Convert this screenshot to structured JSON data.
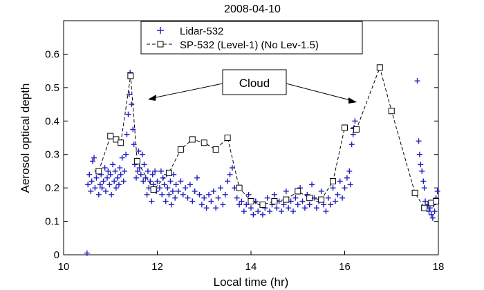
{
  "chart_data": {
    "type": "scatter",
    "title": "2008-04-10",
    "xlabel": "Local time (hr)",
    "ylabel": "Aerosol optical depth",
    "xlim": [
      10,
      18
    ],
    "ylim": [
      0,
      0.7
    ],
    "xticks": [
      10,
      12,
      14,
      16,
      18
    ],
    "yticks": [
      0,
      0.1,
      0.2,
      0.3,
      0.4,
      0.5,
      0.6
    ],
    "grid": false,
    "legend_position": "top-center",
    "annotation": "Cloud",
    "series": [
      {
        "name": "Lidar-532",
        "marker": "plus",
        "color": "#1f1fbf",
        "points": [
          [
            10.5,
            0.005
          ],
          [
            10.52,
            0.21
          ],
          [
            10.55,
            0.24
          ],
          [
            10.58,
            0.19
          ],
          [
            10.6,
            0.22
          ],
          [
            10.62,
            0.28
          ],
          [
            10.65,
            0.29
          ],
          [
            10.67,
            0.2
          ],
          [
            10.7,
            0.23
          ],
          [
            10.72,
            0.25
          ],
          [
            10.75,
            0.18
          ],
          [
            10.78,
            0.21
          ],
          [
            10.8,
            0.24
          ],
          [
            10.82,
            0.2
          ],
          [
            10.85,
            0.22
          ],
          [
            10.88,
            0.26
          ],
          [
            10.9,
            0.19
          ],
          [
            10.93,
            0.23
          ],
          [
            10.95,
            0.25
          ],
          [
            10.98,
            0.21
          ],
          [
            11.0,
            0.24
          ],
          [
            11.02,
            0.18
          ],
          [
            11.05,
            0.27
          ],
          [
            11.08,
            0.22
          ],
          [
            11.1,
            0.25
          ],
          [
            11.12,
            0.2
          ],
          [
            11.15,
            0.23
          ],
          [
            11.18,
            0.21
          ],
          [
            11.2,
            0.26
          ],
          [
            11.22,
            0.24
          ],
          [
            11.25,
            0.29
          ],
          [
            11.28,
            0.22
          ],
          [
            11.3,
            0.25
          ],
          [
            11.33,
            0.3
          ],
          [
            11.35,
            0.36
          ],
          [
            11.38,
            0.42
          ],
          [
            11.4,
            0.48
          ],
          [
            11.42,
            0.545
          ],
          [
            11.45,
            0.45
          ],
          [
            11.48,
            0.375
          ],
          [
            11.5,
            0.33
          ],
          [
            11.52,
            0.27
          ],
          [
            11.55,
            0.23
          ],
          [
            11.58,
            0.25
          ],
          [
            11.6,
            0.31
          ],
          [
            11.62,
            0.26
          ],
          [
            11.65,
            0.24
          ],
          [
            11.68,
            0.3
          ],
          [
            11.7,
            0.22
          ],
          [
            11.72,
            0.27
          ],
          [
            11.75,
            0.23
          ],
          [
            11.78,
            0.18
          ],
          [
            11.8,
            0.25
          ],
          [
            11.82,
            0.2
          ],
          [
            11.85,
            0.22
          ],
          [
            11.88,
            0.16
          ],
          [
            11.9,
            0.24
          ],
          [
            11.92,
            0.21
          ],
          [
            11.95,
            0.25
          ],
          [
            11.98,
            0.19
          ],
          [
            12.0,
            0.22
          ],
          [
            12.05,
            0.2
          ],
          [
            12.08,
            0.25
          ],
          [
            12.1,
            0.18
          ],
          [
            12.12,
            0.23
          ],
          [
            12.15,
            0.21
          ],
          [
            12.18,
            0.16
          ],
          [
            12.2,
            0.24
          ],
          [
            12.22,
            0.2
          ],
          [
            12.25,
            0.18
          ],
          [
            12.28,
            0.22
          ],
          [
            12.3,
            0.15
          ],
          [
            12.33,
            0.19
          ],
          [
            12.35,
            0.24
          ],
          [
            12.38,
            0.17
          ],
          [
            12.4,
            0.21
          ],
          [
            12.45,
            0.19
          ],
          [
            12.5,
            0.22
          ],
          [
            12.55,
            0.18
          ],
          [
            12.6,
            0.2
          ],
          [
            12.65,
            0.17
          ],
          [
            12.7,
            0.21
          ],
          [
            12.75,
            0.16
          ],
          [
            12.8,
            0.19
          ],
          [
            12.85,
            0.23
          ],
          [
            12.9,
            0.18
          ],
          [
            12.95,
            0.15
          ],
          [
            13.0,
            0.17
          ],
          [
            13.05,
            0.14
          ],
          [
            13.1,
            0.18
          ],
          [
            13.15,
            0.16
          ],
          [
            13.2,
            0.19
          ],
          [
            13.25,
            0.14
          ],
          [
            13.3,
            0.17
          ],
          [
            13.35,
            0.2
          ],
          [
            13.4,
            0.15
          ],
          [
            13.45,
            0.18
          ],
          [
            13.5,
            0.22
          ],
          [
            13.55,
            0.24
          ],
          [
            13.6,
            0.26
          ],
          [
            13.65,
            0.2
          ],
          [
            13.7,
            0.17
          ],
          [
            13.75,
            0.15
          ],
          [
            13.8,
            0.16
          ],
          [
            13.85,
            0.13
          ],
          [
            13.9,
            0.15
          ],
          [
            13.95,
            0.18
          ],
          [
            14.0,
            0.14
          ],
          [
            14.05,
            0.12
          ],
          [
            14.1,
            0.16
          ],
          [
            14.15,
            0.13
          ],
          [
            14.2,
            0.15
          ],
          [
            14.25,
            0.12
          ],
          [
            14.3,
            0.14
          ],
          [
            14.35,
            0.17
          ],
          [
            14.4,
            0.13
          ],
          [
            14.45,
            0.15
          ],
          [
            14.5,
            0.18
          ],
          [
            14.55,
            0.14
          ],
          [
            14.6,
            0.16
          ],
          [
            14.65,
            0.13
          ],
          [
            14.7,
            0.15
          ],
          [
            14.75,
            0.19
          ],
          [
            14.8,
            0.14
          ],
          [
            14.85,
            0.16
          ],
          [
            14.9,
            0.13
          ],
          [
            14.95,
            0.17
          ],
          [
            15.0,
            0.15
          ],
          [
            15.05,
            0.2
          ],
          [
            15.1,
            0.16
          ],
          [
            15.15,
            0.14
          ],
          [
            15.2,
            0.18
          ],
          [
            15.25,
            0.15
          ],
          [
            15.3,
            0.21
          ],
          [
            15.35,
            0.17
          ],
          [
            15.4,
            0.14
          ],
          [
            15.45,
            0.16
          ],
          [
            15.5,
            0.19
          ],
          [
            15.55,
            0.15
          ],
          [
            15.6,
            0.13
          ],
          [
            15.65,
            0.17
          ],
          [
            15.7,
            0.15
          ],
          [
            15.75,
            0.2
          ],
          [
            15.8,
            0.16
          ],
          [
            15.85,
            0.18
          ],
          [
            15.9,
            0.22
          ],
          [
            15.95,
            0.17
          ],
          [
            16.0,
            0.2
          ],
          [
            16.05,
            0.23
          ],
          [
            16.1,
            0.25
          ],
          [
            16.12,
            0.21
          ],
          [
            16.15,
            0.33
          ],
          [
            16.18,
            0.36
          ],
          [
            16.2,
            0.38
          ],
          [
            16.22,
            0.4
          ],
          [
            17.55,
            0.52
          ],
          [
            17.58,
            0.34
          ],
          [
            17.6,
            0.3
          ],
          [
            17.62,
            0.27
          ],
          [
            17.65,
            0.25
          ],
          [
            17.68,
            0.22
          ],
          [
            17.7,
            0.2
          ],
          [
            17.72,
            0.16
          ],
          [
            17.75,
            0.14
          ],
          [
            17.78,
            0.15
          ],
          [
            17.8,
            0.13
          ],
          [
            17.82,
            0.14
          ],
          [
            17.85,
            0.12
          ],
          [
            17.88,
            0.11
          ],
          [
            17.9,
            0.15
          ],
          [
            17.92,
            0.13
          ],
          [
            17.95,
            0.17
          ],
          [
            17.98,
            0.19
          ]
        ]
      },
      {
        "name": "SP-532 (Level-1) (No Lev-1.5)",
        "marker": "square",
        "color": "#000000",
        "points": [
          [
            10.75,
            0.25
          ],
          [
            11.0,
            0.355
          ],
          [
            11.12,
            0.345
          ],
          [
            11.22,
            0.335
          ],
          [
            11.43,
            0.535
          ],
          [
            11.57,
            0.28
          ],
          [
            11.92,
            0.195
          ],
          [
            12.25,
            0.245
          ],
          [
            12.5,
            0.315
          ],
          [
            12.75,
            0.345
          ],
          [
            13.0,
            0.335
          ],
          [
            13.25,
            0.315
          ],
          [
            13.5,
            0.35
          ],
          [
            13.75,
            0.2
          ],
          [
            14.0,
            0.16
          ],
          [
            14.25,
            0.15
          ],
          [
            14.5,
            0.16
          ],
          [
            14.75,
            0.165
          ],
          [
            15.0,
            0.19
          ],
          [
            15.25,
            0.17
          ],
          [
            15.5,
            0.165
          ],
          [
            15.75,
            0.22
          ],
          [
            16.0,
            0.38
          ],
          [
            16.25,
            0.375
          ],
          [
            16.75,
            0.56
          ],
          [
            17.0,
            0.43
          ],
          [
            17.5,
            0.185
          ],
          [
            17.7,
            0.14
          ],
          [
            17.85,
            0.155
          ],
          [
            17.95,
            0.16
          ]
        ]
      }
    ]
  }
}
